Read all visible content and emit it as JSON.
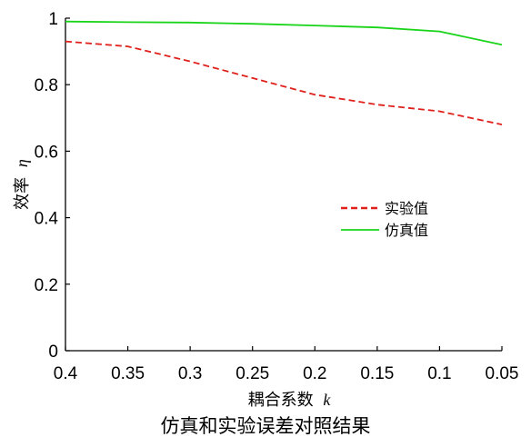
{
  "chart_data": {
    "type": "line",
    "x": [
      0.4,
      0.35,
      0.3,
      0.25,
      0.2,
      0.15,
      0.1,
      0.05
    ],
    "xlim": [
      0.4,
      0.05
    ],
    "x_reversed": true,
    "ylim": [
      0,
      1
    ],
    "xticks": [
      "0.4",
      "0.35",
      "0.3",
      "0.25",
      "0.2",
      "0.15",
      "0.1",
      "0.05"
    ],
    "yticks": [
      "0",
      "0.2",
      "0.4",
      "0.6",
      "0.8",
      "1"
    ],
    "xlabel": "耦合系数",
    "xlabel_var": "k",
    "ylabel": "效率",
    "ylabel_var": "η",
    "grid": false,
    "legend_position": "center-right",
    "series": [
      {
        "name": "实验值",
        "values": [
          0.93,
          0.915,
          0.87,
          0.82,
          0.77,
          0.74,
          0.72,
          0.68
        ],
        "color": "#e0201b",
        "style": "dashed"
      },
      {
        "name": "仿真值",
        "values": [
          0.99,
          0.988,
          0.987,
          0.983,
          0.978,
          0.972,
          0.96,
          0.92
        ],
        "color": "#19d419",
        "style": "solid"
      }
    ]
  },
  "caption": "仿真和实验误差对照结果"
}
